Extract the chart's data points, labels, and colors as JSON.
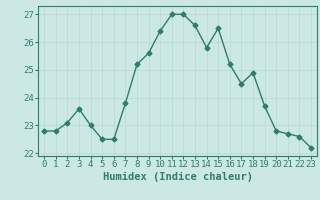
{
  "x": [
    0,
    1,
    2,
    3,
    4,
    5,
    6,
    7,
    8,
    9,
    10,
    11,
    12,
    13,
    14,
    15,
    16,
    17,
    18,
    19,
    20,
    21,
    22,
    23
  ],
  "y": [
    22.8,
    22.8,
    23.1,
    23.6,
    23.0,
    22.5,
    22.5,
    23.8,
    25.2,
    25.6,
    26.4,
    27.0,
    27.0,
    26.6,
    25.8,
    26.5,
    25.2,
    24.5,
    24.9,
    23.7,
    22.8,
    22.7,
    22.6,
    22.2
  ],
  "line_color": "#2e7d6e",
  "marker": "D",
  "marker_size": 2.5,
  "bg_color": "#cce8e5",
  "grid_color": "#b8d8d4",
  "xlabel": "Humidex (Indice chaleur)",
  "ylim": [
    21.9,
    27.3
  ],
  "yticks": [
    22,
    23,
    24,
    25,
    26,
    27
  ],
  "xticks": [
    0,
    1,
    2,
    3,
    4,
    5,
    6,
    7,
    8,
    9,
    10,
    11,
    12,
    13,
    14,
    15,
    16,
    17,
    18,
    19,
    20,
    21,
    22,
    23
  ],
  "xlabel_fontsize": 7.5,
  "tick_fontsize": 6.5,
  "spine_color": "#2e7d6e",
  "linewidth": 1.0
}
